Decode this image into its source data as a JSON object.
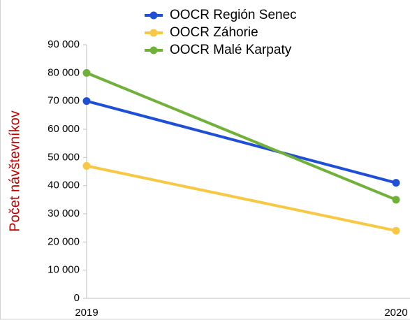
{
  "chart_data": {
    "type": "line",
    "y_label": "Počet návštevníkov",
    "categories": [
      "2019",
      "2020"
    ],
    "series": [
      {
        "name": "OOCR Región Senec",
        "color": "#1f4fd6",
        "values": [
          70000,
          41000
        ]
      },
      {
        "name": "OOCR Záhorie",
        "color": "#f7c843",
        "values": [
          47000,
          24000
        ]
      },
      {
        "name": "OOCR Malé Karpaty",
        "color": "#70b13a",
        "values": [
          80000,
          35000
        ]
      }
    ],
    "ylim": [
      0,
      90000
    ],
    "yticks": [
      0,
      {
        "value": 10000,
        "label": "10 000"
      },
      {
        "value": 20000,
        "label": "20 000"
      },
      {
        "value": 30000,
        "label": "30 000"
      },
      {
        "value": 40000,
        "label": "40 000"
      },
      {
        "value": 50000,
        "label": "50 000"
      },
      {
        "value": 60000,
        "label": "60 000"
      },
      {
        "value": 70000,
        "label": "70 000"
      },
      {
        "value": 80000,
        "label": "80 000"
      },
      {
        "value": 90000,
        "label": "90 000"
      }
    ],
    "grid": false,
    "legend": "top"
  }
}
